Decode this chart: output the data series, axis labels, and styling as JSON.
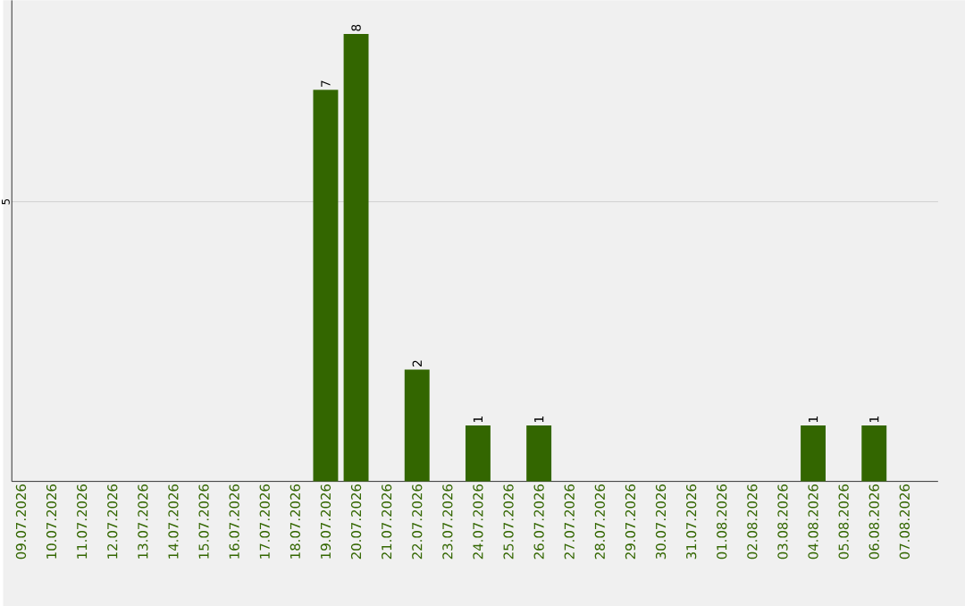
{
  "chart_data": {
    "type": "bar",
    "categories": [
      "09.07.2026",
      "10.07.2026",
      "11.07.2026",
      "12.07.2026",
      "13.07.2026",
      "14.07.2026",
      "15.07.2026",
      "16.07.2026",
      "17.07.2026",
      "18.07.2026",
      "19.07.2026",
      "20.07.2026",
      "21.07.2026",
      "22.07.2026",
      "23.07.2026",
      "24.07.2026",
      "25.07.2026",
      "26.07.2026",
      "27.07.2026",
      "28.07.2026",
      "29.07.2026",
      "30.07.2026",
      "31.07.2026",
      "01.08.2026",
      "02.08.2026",
      "03.08.2026",
      "04.08.2026",
      "05.08.2026",
      "06.08.2026",
      "07.08.2026"
    ],
    "values": [
      0,
      0,
      0,
      0,
      0,
      0,
      0,
      0,
      0,
      0,
      7,
      8,
      0,
      2,
      0,
      1,
      0,
      1,
      0,
      0,
      0,
      0,
      0,
      0,
      0,
      0,
      1,
      0,
      1,
      0
    ],
    "value_labels": [
      null,
      null,
      null,
      null,
      null,
      null,
      null,
      null,
      null,
      null,
      "7",
      "8",
      null,
      "2",
      null,
      "1",
      null,
      "1",
      null,
      null,
      null,
      null,
      null,
      null,
      null,
      null,
      "1",
      null,
      "1",
      null
    ],
    "color": "#336600",
    "ylim": [
      0,
      8.6
    ],
    "yticks": [
      5
    ],
    "grid": "y"
  }
}
